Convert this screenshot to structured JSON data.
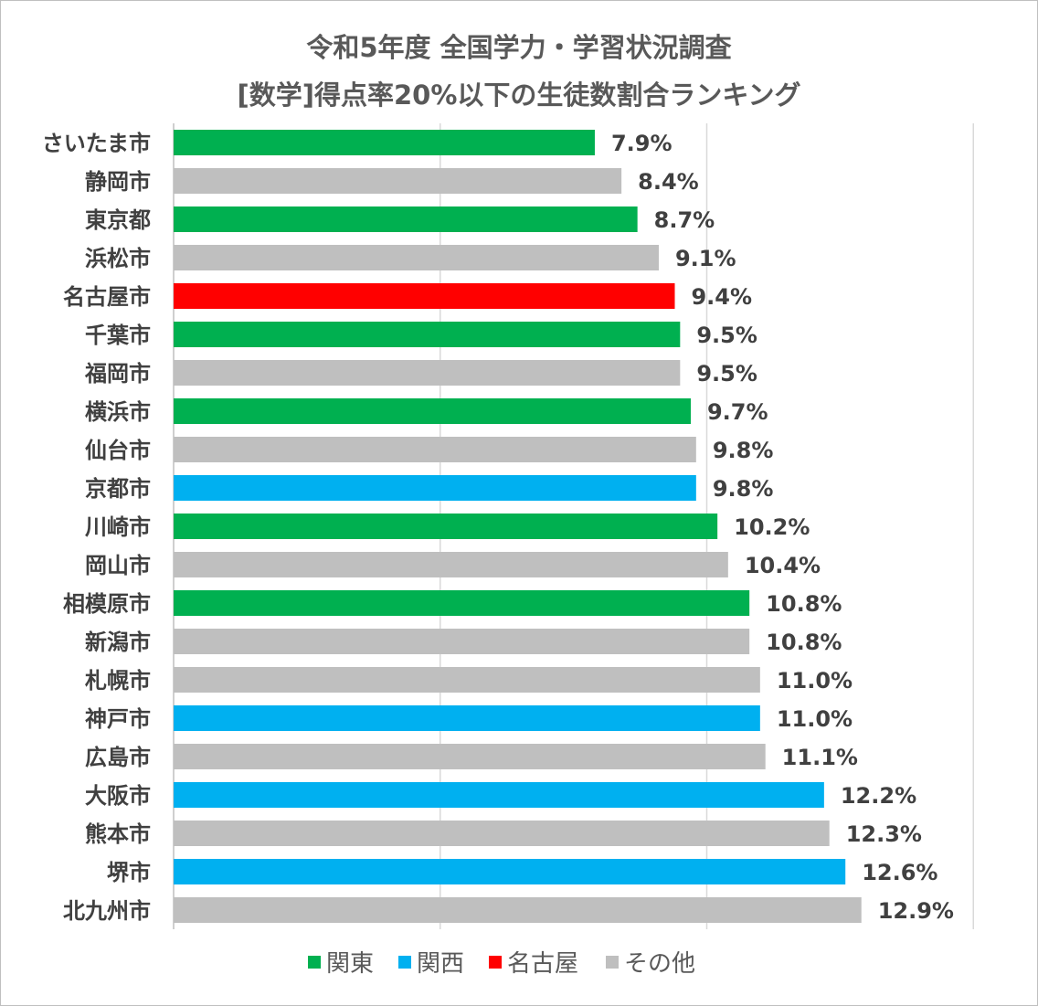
{
  "chart_data": {
    "type": "bar",
    "orientation": "horizontal",
    "title": "令和5年度 全国学力・学習状況調査",
    "subtitle": "[数学]得点率20%以下の生徒数割合ランキング",
    "xlabel": "",
    "ylabel": "",
    "xlim": [
      0,
      15
    ],
    "grid": true,
    "grid_step": 5,
    "legend_position": "bottom",
    "colors": {
      "関東": "#00B050",
      "関西": "#00B0F0",
      "名古屋": "#FF0000",
      "その他": "#BFBFBF"
    },
    "legend": [
      "関東",
      "関西",
      "名古屋",
      "その他"
    ],
    "categories": [
      "さいたま市",
      "静岡市",
      "東京都",
      "浜松市",
      "名古屋市",
      "千葉市",
      "福岡市",
      "横浜市",
      "仙台市",
      "京都市",
      "川崎市",
      "岡山市",
      "相模原市",
      "新潟市",
      "札幌市",
      "神戸市",
      "広島市",
      "大阪市",
      "熊本市",
      "堺市",
      "北九州市"
    ],
    "values": [
      7.9,
      8.4,
      8.7,
      9.1,
      9.4,
      9.5,
      9.5,
      9.7,
      9.8,
      9.8,
      10.2,
      10.4,
      10.8,
      10.8,
      11.0,
      11.0,
      11.1,
      12.2,
      12.3,
      12.6,
      12.9
    ],
    "value_labels": [
      "7.9%",
      "8.4%",
      "8.7%",
      "9.1%",
      "9.4%",
      "9.5%",
      "9.5%",
      "9.7%",
      "9.8%",
      "9.8%",
      "10.2%",
      "10.4%",
      "10.8%",
      "10.8%",
      "11.0%",
      "11.0%",
      "11.1%",
      "12.2%",
      "12.3%",
      "12.6%",
      "12.9%"
    ],
    "groups": [
      "関東",
      "その他",
      "関東",
      "その他",
      "名古屋",
      "関東",
      "その他",
      "関東",
      "その他",
      "関西",
      "関東",
      "その他",
      "関東",
      "その他",
      "その他",
      "関西",
      "その他",
      "関西",
      "その他",
      "関西",
      "その他"
    ]
  }
}
